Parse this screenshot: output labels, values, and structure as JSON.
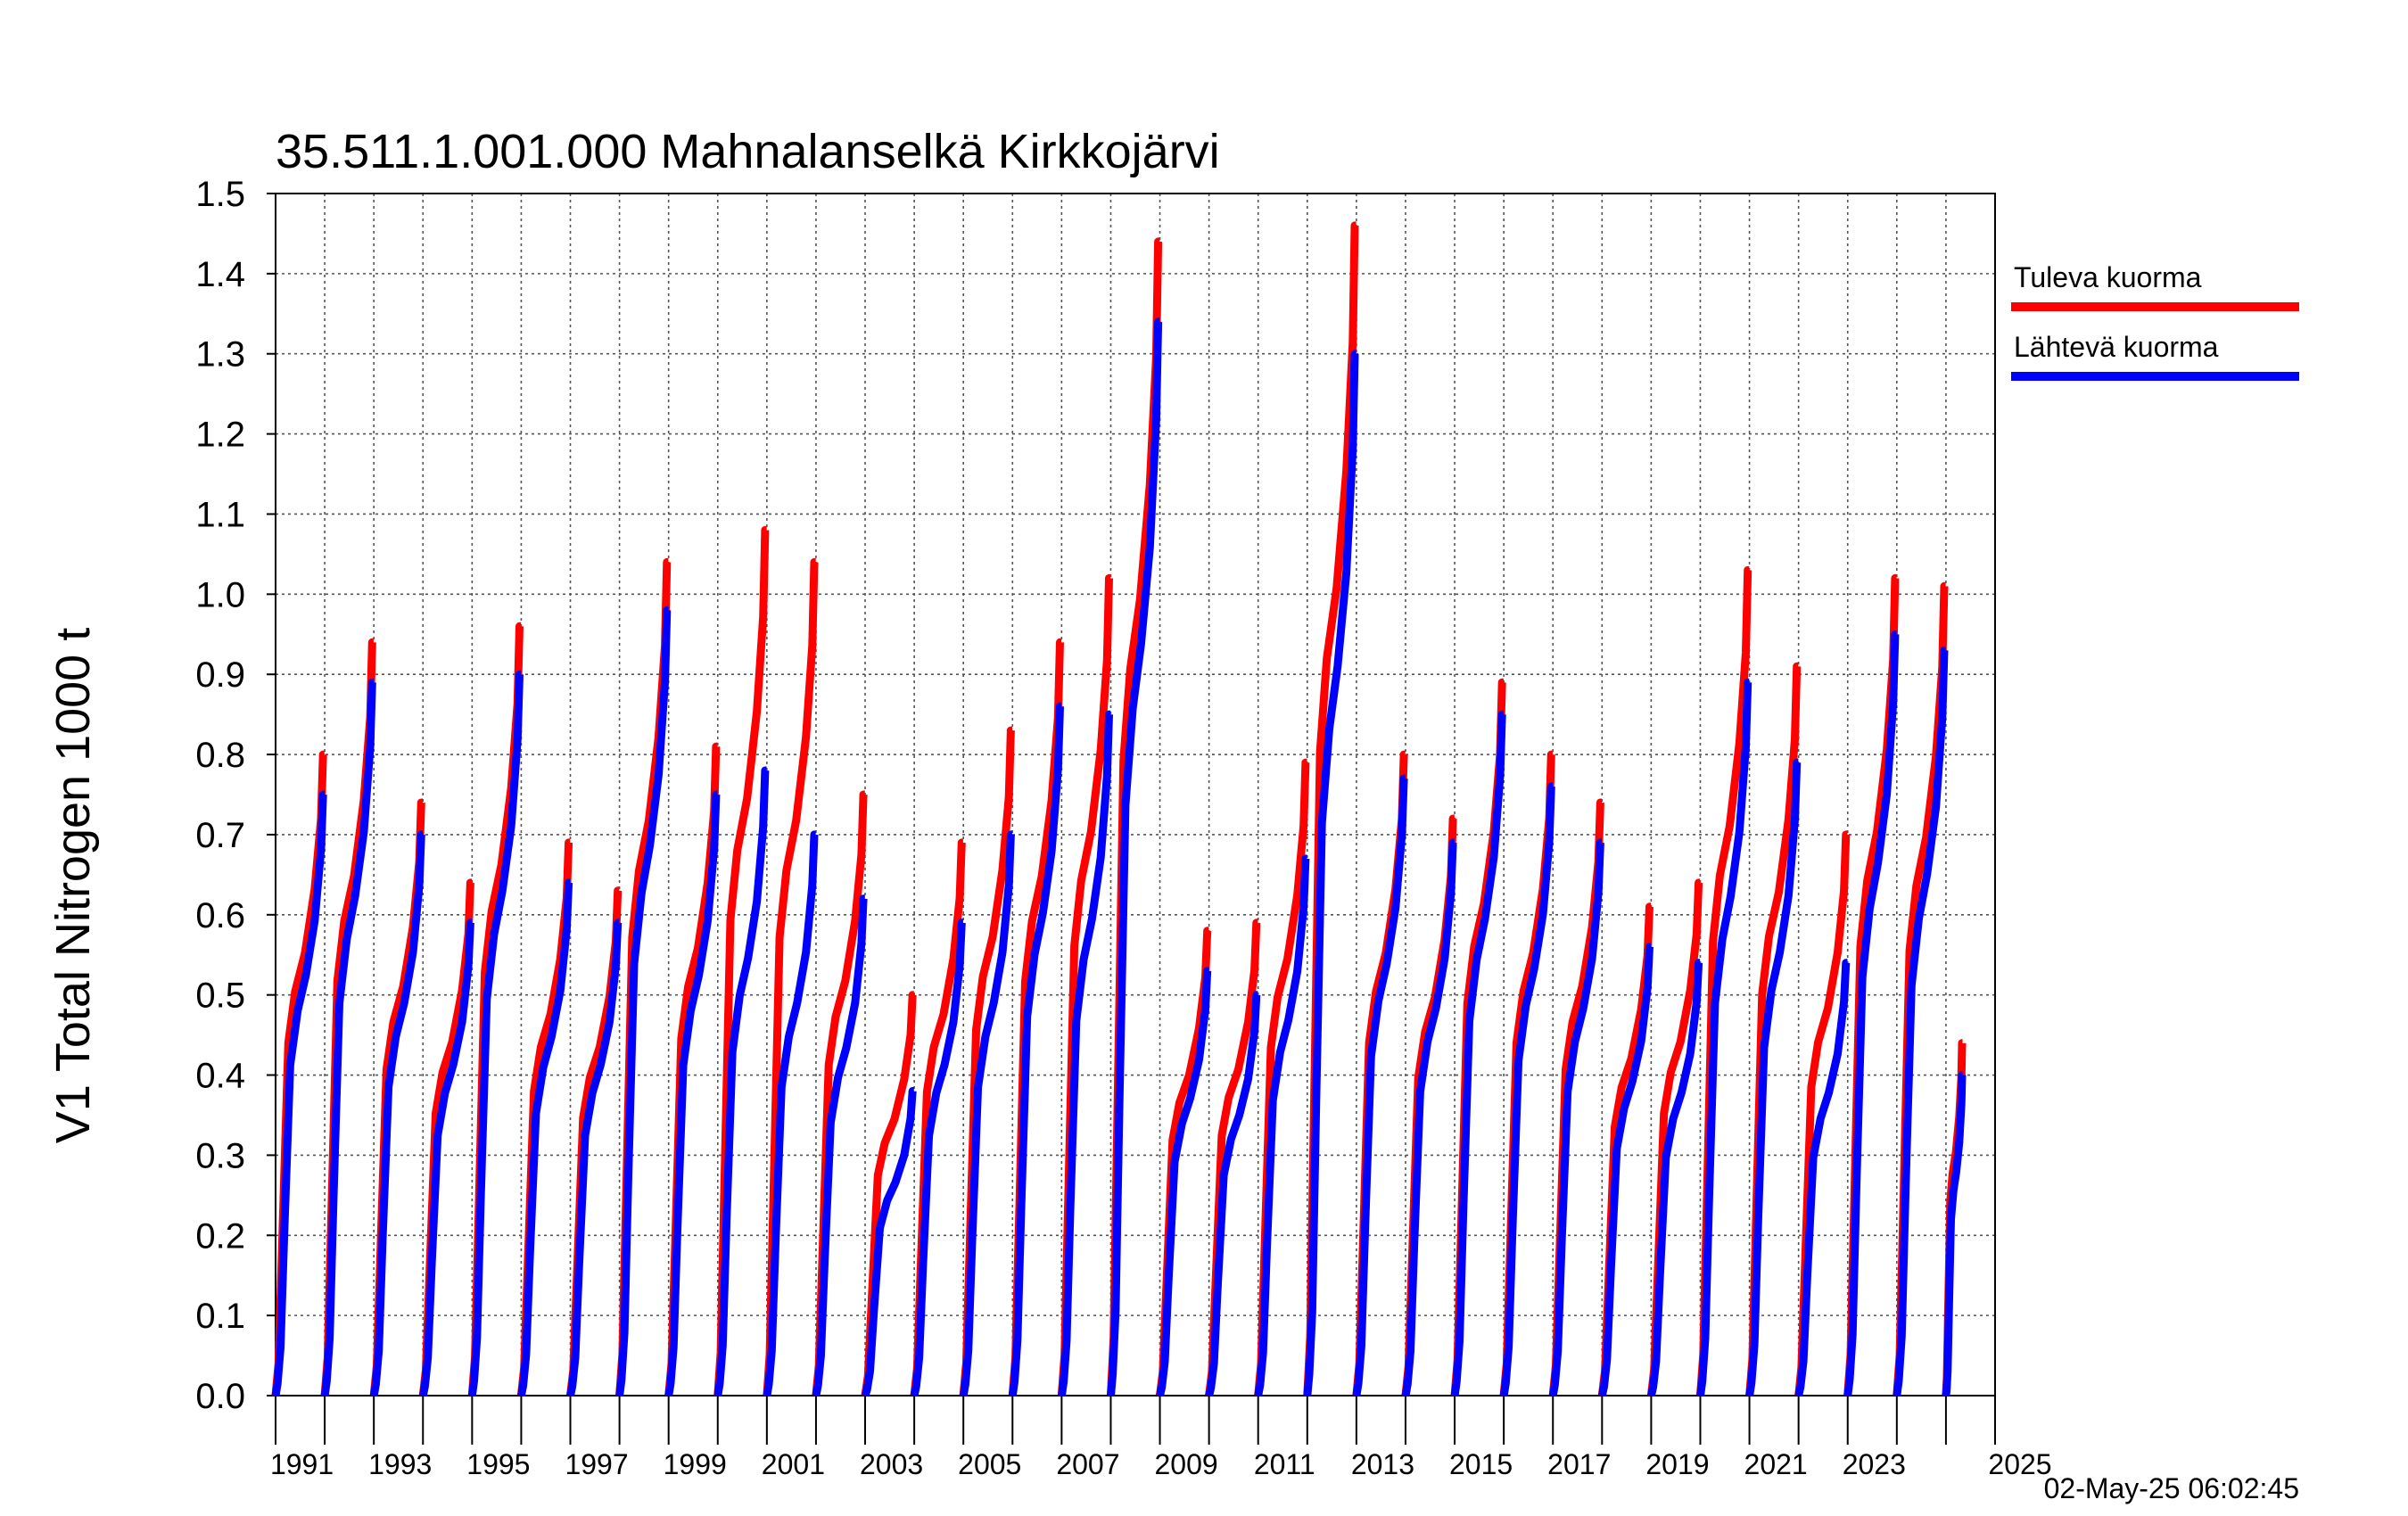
{
  "chart_data": {
    "type": "line",
    "title": "35.511.1.001.000 Mahnalanselkä Kirkkojärvi",
    "ylabel": "V1 Total Nitrogen 1000 t",
    "xlabel": "",
    "xlim": [
      1990,
      2025
    ],
    "ylim": [
      0,
      1.5
    ],
    "y_ticks": [
      "0.0",
      "0.1",
      "0.2",
      "0.3",
      "0.4",
      "0.5",
      "0.6",
      "0.7",
      "0.8",
      "0.9",
      "1.0",
      "1.1",
      "1.2",
      "1.3",
      "1.4",
      "1.5"
    ],
    "x_ticks": [
      "1991",
      "1993",
      "1995",
      "1997",
      "1999",
      "2001",
      "2003",
      "2005",
      "2007",
      "2009",
      "2011",
      "2013",
      "2015",
      "2017",
      "2019",
      "2021",
      "2023",
      "2025"
    ],
    "grid": true,
    "legend_position": "right",
    "timestamp": "02-May-25 06:02:45",
    "series": [
      {
        "name": "Tuleva kuorma",
        "color": "#ff0000",
        "annual_max": [
          0.8,
          0.94,
          0.74,
          0.64,
          0.96,
          0.69,
          0.63,
          1.04,
          0.81,
          1.08,
          1.04,
          0.75,
          0.5,
          0.69,
          0.83,
          0.94,
          1.02,
          1.44,
          0.58,
          0.59,
          0.79,
          1.46,
          0.8,
          0.72,
          0.89,
          0.8,
          0.74,
          0.61,
          0.64,
          1.03,
          0.91,
          0.7,
          1.02,
          1.01,
          0.44
        ]
      },
      {
        "name": "Lähtevä kuorma",
        "color": "#0000ff",
        "annual_max": [
          0.75,
          0.89,
          0.7,
          0.59,
          0.9,
          0.64,
          0.59,
          0.98,
          0.75,
          0.78,
          0.7,
          0.62,
          0.38,
          0.59,
          0.7,
          0.86,
          0.85,
          1.34,
          0.53,
          0.5,
          0.67,
          1.3,
          0.77,
          0.69,
          0.85,
          0.76,
          0.69,
          0.56,
          0.54,
          0.89,
          0.79,
          0.54,
          0.95,
          0.93,
          0.4
        ]
      }
    ]
  }
}
